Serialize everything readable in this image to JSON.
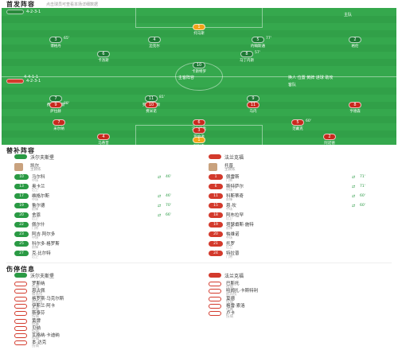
{
  "header": {
    "title": "首发阵容",
    "subtitle": "点击球员可查看本场详细数据"
  },
  "pitch": {
    "home_bar": {
      "label": "4-2-3-1",
      "coach": "主队"
    },
    "away_bar": {
      "label": "4-2-3-1",
      "coach": "客队"
    },
    "mid_left": "4-4-1-1",
    "mid_center": "主客阵容",
    "mid_right": "换人 位置 黄牌 进球 助攻",
    "home_players": [
      {
        "num": "1",
        "name": "托马斯",
        "ev": ""
      },
      {
        "num": "3",
        "name": "博格丹",
        "ev": "65'"
      },
      {
        "num": "4",
        "name": "迈克尔",
        "ev": ""
      },
      {
        "num": "5",
        "name": "约翰斯通",
        "ev": "77'"
      },
      {
        "num": "2",
        "name": "格伦",
        "ev": ""
      },
      {
        "num": "6",
        "name": "卡洛斯",
        "ev": ""
      },
      {
        "num": "8",
        "name": "马丁内斯",
        "ev": "57'"
      },
      {
        "num": "10",
        "name": "卡斯特罗",
        "ev": ""
      },
      {
        "num": "7",
        "name": "费尔南德斯",
        "ev": ""
      },
      {
        "num": "11",
        "name": "罗德里格斯",
        "ev": "81'"
      },
      {
        "num": "9",
        "name": "佩德罗",
        "ev": ""
      }
    ],
    "away_players": [
      {
        "num": "9",
        "name": "萨拉赫",
        "ev": "88'"
      },
      {
        "num": "10",
        "name": "费米诺",
        "ev": ""
      },
      {
        "num": "11",
        "name": "马内",
        "ev": ""
      },
      {
        "num": "8",
        "name": "亨德森",
        "ev": ""
      },
      {
        "num": "7",
        "name": "米尔纳",
        "ev": ""
      },
      {
        "num": "6",
        "name": "法比尼奥",
        "ev": ""
      },
      {
        "num": "5",
        "name": "范戴克",
        "ev": "60'"
      },
      {
        "num": "4",
        "name": "马蒂普",
        "ev": ""
      },
      {
        "num": "3",
        "name": "罗伯逊",
        "ev": ""
      },
      {
        "num": "2",
        "name": "阿诺德",
        "ev": ""
      },
      {
        "num": "1",
        "name": "阿利森",
        "ev": ""
      }
    ]
  },
  "subs_section": {
    "title": "替补阵容",
    "home_team": "沃尔夫斯堡",
    "away_team": "法兰克福",
    "home_coach": {
      "name": "凯尔",
      "role": "主教练"
    },
    "away_coach": {
      "name": "托普",
      "role": "主教练"
    },
    "home_subs": [
      {
        "num": "10",
        "name": "马尔科",
        "pos": "中场",
        "min": "46'"
      },
      {
        "num": "13",
        "name": "奥卡兰",
        "pos": "后卫",
        "min": ""
      },
      {
        "num": "17",
        "name": "维格尔斯",
        "pos": "中场",
        "min": "46'"
      },
      {
        "num": "19",
        "name": "鲁尔德",
        "pos": "前锋",
        "min": "70'"
      },
      {
        "num": "20",
        "name": "舍恩",
        "pos": "后卫",
        "min": "66'"
      },
      {
        "num": "22",
        "name": "佩尔什",
        "pos": "门将",
        "min": ""
      },
      {
        "num": "23",
        "name": "阿吉·阿尔多",
        "pos": "中场",
        "min": ""
      },
      {
        "num": "25",
        "name": "科尔多·格罗斯",
        "pos": "前锋",
        "min": ""
      },
      {
        "num": "27",
        "name": "克·比尔特",
        "pos": "后卫",
        "min": ""
      }
    ],
    "away_subs": [
      {
        "num": "1",
        "name": "佩雷斯",
        "pos": "门将",
        "min": "71'"
      },
      {
        "num": "6",
        "name": "斯特萨尔",
        "pos": "中场",
        "min": "71'"
      },
      {
        "num": "11",
        "name": "科斯蒂奇",
        "pos": "前锋",
        "min": "60'"
      },
      {
        "num": "15",
        "name": "恩·坎",
        "pos": "中场",
        "min": "60'"
      },
      {
        "num": "18",
        "name": "阿布拉罕",
        "pos": "后卫",
        "min": ""
      },
      {
        "num": "19",
        "name": "塔瑟甫斯·施特",
        "pos": "前锋",
        "min": ""
      },
      {
        "num": "20",
        "name": "帕维诺",
        "pos": "中场",
        "min": ""
      },
      {
        "num": "21",
        "name": "托罗",
        "pos": "后卫",
        "min": ""
      },
      {
        "num": "24",
        "name": "特拉普",
        "pos": "门将",
        "min": ""
      }
    ]
  },
  "injury_section": {
    "title": "伤停信息",
    "home_team": "沃尔夫斯堡",
    "away_team": "法兰克福",
    "home": [
      {
        "name": "罗斯纳",
        "reason": "伤病"
      },
      {
        "name": "恩古佩",
        "reason": "膝盖伤"
      },
      {
        "name": "格罗斯·马克尔斯",
        "reason": "肌肉伤"
      },
      {
        "name": "伊斯兰·阿卡",
        "reason": "停赛"
      },
      {
        "name": "斯泰芬",
        "reason": "伤病"
      },
      {
        "name": "黄牌",
        "reason": "停赛"
      },
      {
        "name": "贝纳",
        "reason": "伤病"
      },
      {
        "name": "瓦格纳·卡迪纳",
        "reason": "伤病"
      },
      {
        "name": "本·达克",
        "reason": "伤病"
      }
    ],
    "away": [
      {
        "name": "巴斯托",
        "reason": "伤病"
      },
      {
        "name": "哈姆扎·卡斯特利",
        "reason": "肌肉伤"
      },
      {
        "name": "莫德",
        "reason": "伤病"
      },
      {
        "name": "格雷·索洛",
        "reason": "停赛"
      },
      {
        "name": "卢卡",
        "reason": "伤病"
      }
    ]
  },
  "colors": {
    "pitch": "#35a84d",
    "home": "#2a9a44",
    "away": "#d33a2c",
    "gk": "#f2a418"
  }
}
